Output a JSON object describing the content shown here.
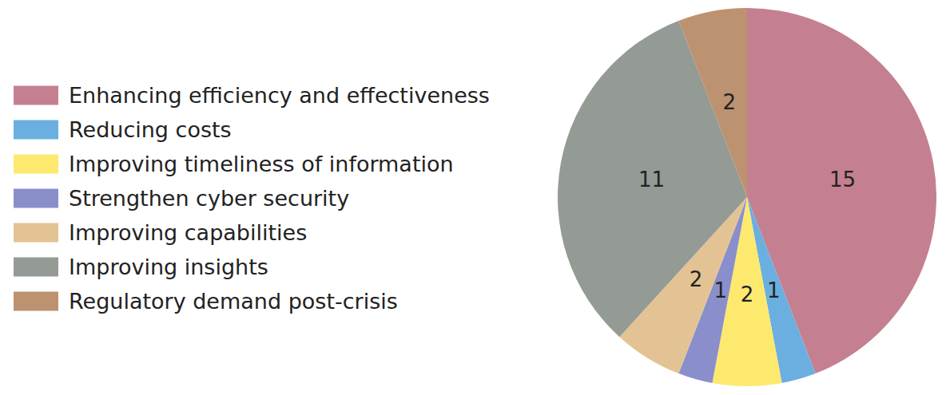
{
  "chart_data": {
    "type": "pie",
    "categories": [
      "Enhancing efficiency and effectiveness",
      "Reducing costs",
      "Improving timeliness of information",
      "Strengthen cyber security",
      "Improving capabilities",
      "Improving insights",
      "Regulatory demand post-crisis"
    ],
    "values": [
      15,
      1,
      2,
      1,
      2,
      11,
      2
    ],
    "colors": [
      "#c48090",
      "#6aafe0",
      "#fde96e",
      "#8a8fcc",
      "#e3c393",
      "#949a94",
      "#bc9270"
    ],
    "data_labels": true,
    "legend": "left"
  }
}
